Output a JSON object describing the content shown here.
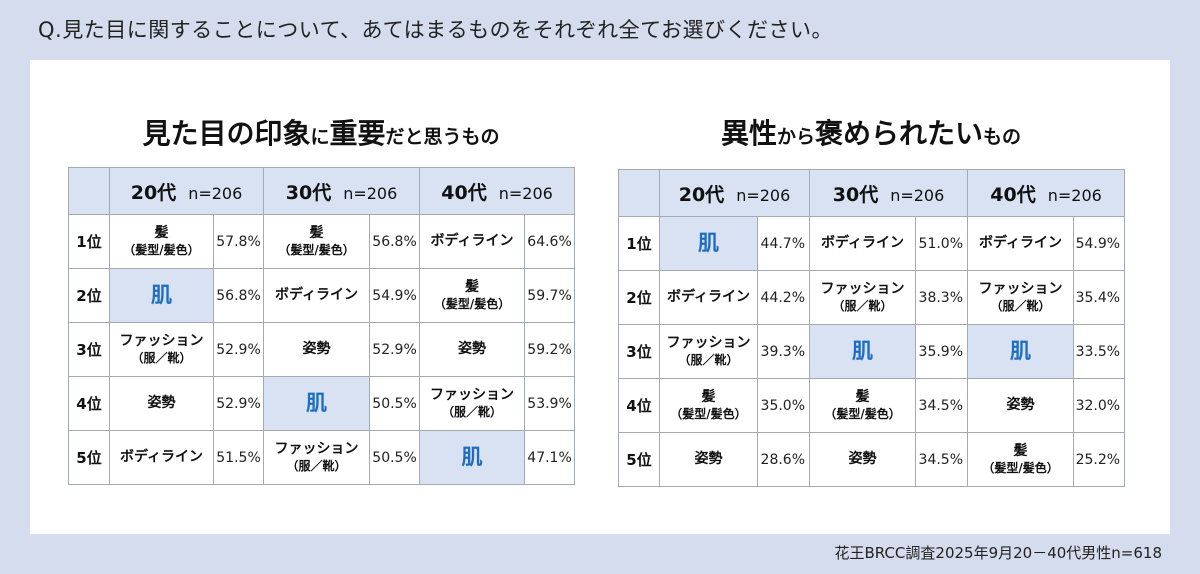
{
  "question": "Q.見た目に関することについて、あてはまるものをそれぞれ全てお選びください。",
  "source": "花王BRCC調査2025年9月20－40代男性n=618",
  "colors": {
    "background": "#d4dced",
    "header": "#d9e2f3",
    "highlight_text": "#1f6dc0"
  },
  "chart_data": [
    {
      "type": "table",
      "title": "見た目の印象に重要だと思うもの",
      "title_parts": {
        "a": "見た目の印象",
        "b": "に",
        "c": "重要",
        "d": "だと思うもの"
      },
      "columns": [
        {
          "age": "20代",
          "n": "n=206"
        },
        {
          "age": "30代",
          "n": "n=206"
        },
        {
          "age": "40代",
          "n": "n=206"
        }
      ],
      "rows": [
        {
          "rank": "1位",
          "cells": [
            {
              "item": "髪",
              "sub": "（髪型/髪色）",
              "pct": "57.8%",
              "value": 57.8
            },
            {
              "item": "髪",
              "sub": "（髪型/髪色）",
              "pct": "56.8%",
              "value": 56.8
            },
            {
              "item": "ボディライン",
              "sub": "",
              "pct": "64.6%",
              "value": 64.6
            }
          ]
        },
        {
          "rank": "2位",
          "cells": [
            {
              "item": "肌",
              "sub": "",
              "pct": "56.8%",
              "value": 56.8,
              "highlight": true
            },
            {
              "item": "ボディライン",
              "sub": "",
              "pct": "54.9%",
              "value": 54.9
            },
            {
              "item": "髪",
              "sub": "（髪型/髪色）",
              "pct": "59.7%",
              "value": 59.7
            }
          ]
        },
        {
          "rank": "3位",
          "cells": [
            {
              "item": "ファッション",
              "sub": "（服／靴）",
              "pct": "52.9%",
              "value": 52.9
            },
            {
              "item": "姿勢",
              "sub": "",
              "pct": "52.9%",
              "value": 52.9
            },
            {
              "item": "姿勢",
              "sub": "",
              "pct": "59.2%",
              "value": 59.2
            }
          ]
        },
        {
          "rank": "4位",
          "cells": [
            {
              "item": "姿勢",
              "sub": "",
              "pct": "52.9%",
              "value": 52.9
            },
            {
              "item": "肌",
              "sub": "",
              "pct": "50.5%",
              "value": 50.5,
              "highlight": true
            },
            {
              "item": "ファッション",
              "sub": "（服／靴）",
              "pct": "53.9%",
              "value": 53.9
            }
          ]
        },
        {
          "rank": "5位",
          "cells": [
            {
              "item": "ボディライン",
              "sub": "",
              "pct": "51.5%",
              "value": 51.5
            },
            {
              "item": "ファッション",
              "sub": "（服／靴）",
              "pct": "50.5%",
              "value": 50.5
            },
            {
              "item": "肌",
              "sub": "",
              "pct": "47.1%",
              "value": 47.1,
              "highlight": true
            }
          ]
        }
      ]
    },
    {
      "type": "table",
      "title": "異性から褒められたいもの",
      "title_parts": {
        "a": "異性",
        "b": "から",
        "c": "褒められたい",
        "d": "もの"
      },
      "columns": [
        {
          "age": "20代",
          "n": "n=206"
        },
        {
          "age": "30代",
          "n": "n=206"
        },
        {
          "age": "40代",
          "n": "n=206"
        }
      ],
      "rows": [
        {
          "rank": "1位",
          "cells": [
            {
              "item": "肌",
              "sub": "",
              "pct": "44.7%",
              "value": 44.7,
              "highlight": true
            },
            {
              "item": "ボディライン",
              "sub": "",
              "pct": "51.0%",
              "value": 51.0
            },
            {
              "item": "ボディライン",
              "sub": "",
              "pct": "54.9%",
              "value": 54.9
            }
          ]
        },
        {
          "rank": "2位",
          "cells": [
            {
              "item": "ボディライン",
              "sub": "",
              "pct": "44.2%",
              "value": 44.2
            },
            {
              "item": "ファッション",
              "sub": "（服／靴）",
              "pct": "38.3%",
              "value": 38.3
            },
            {
              "item": "ファッション",
              "sub": "（服／靴）",
              "pct": "35.4%",
              "value": 35.4
            }
          ]
        },
        {
          "rank": "3位",
          "cells": [
            {
              "item": "ファッション",
              "sub": "（服／靴）",
              "pct": "39.3%",
              "value": 39.3
            },
            {
              "item": "肌",
              "sub": "",
              "pct": "35.9%",
              "value": 35.9,
              "highlight": true
            },
            {
              "item": "肌",
              "sub": "",
              "pct": "33.5%",
              "value": 33.5,
              "highlight": true
            }
          ]
        },
        {
          "rank": "4位",
          "cells": [
            {
              "item": "髪",
              "sub": "（髪型/髪色）",
              "pct": "35.0%",
              "value": 35.0
            },
            {
              "item": "髪",
              "sub": "（髪型/髪色）",
              "pct": "34.5%",
              "value": 34.5
            },
            {
              "item": "姿勢",
              "sub": "",
              "pct": "32.0%",
              "value": 32.0
            }
          ]
        },
        {
          "rank": "5位",
          "cells": [
            {
              "item": "姿勢",
              "sub": "",
              "pct": "28.6%",
              "value": 28.6
            },
            {
              "item": "姿勢",
              "sub": "",
              "pct": "34.5%",
              "value": 34.5
            },
            {
              "item": "髪",
              "sub": "（髪型/髪色）",
              "pct": "25.2%",
              "value": 25.2
            }
          ]
        }
      ]
    }
  ]
}
